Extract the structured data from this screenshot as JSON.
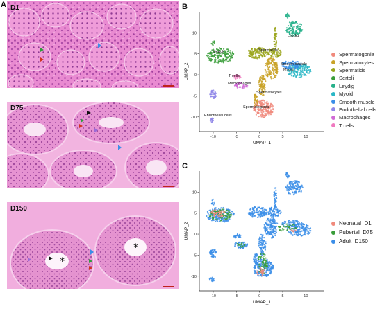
{
  "panels": {
    "a": {
      "letter": "A",
      "sections": [
        {
          "label": "D1"
        },
        {
          "label": "D75"
        },
        {
          "label": "D150"
        }
      ]
    },
    "b": {
      "letter": "B",
      "xlabel": "UMAP_1",
      "ylabel": "UMAP_2",
      "legend": [
        {
          "label": "Spermatogonia",
          "color": "#f08a7c"
        },
        {
          "label": "Spermatocytes",
          "color": "#c9a227"
        },
        {
          "label": "Spermatids",
          "color": "#9aa51b"
        },
        {
          "label": "Sertoli",
          "color": "#3a9d3a"
        },
        {
          "label": "Leydig",
          "color": "#26b08a"
        },
        {
          "label": "Myoid",
          "color": "#2ab7c6"
        },
        {
          "label": "Smooth muscle",
          "color": "#3b8ee8"
        },
        {
          "label": "Endothelial cells",
          "color": "#8f86e8"
        },
        {
          "label": "Macrophages",
          "color": "#d06ad6"
        },
        {
          "label": "T cells",
          "color": "#f07ac0"
        }
      ],
      "cluster_labels": {
        "leydig": "Leydig",
        "sertoli": "Sertoli",
        "spermatids": "Spermatids",
        "tcells": "T cells",
        "macrophages": "Macrophages",
        "smooth": "Smooth muscle",
        "myoid": "Myoid",
        "spermatocytes": "Spermatocytes",
        "spermatogonia": "Spermatogonia",
        "endothelial": "Endothelial cells"
      }
    },
    "c": {
      "letter": "C",
      "xlabel": "UMAP_1",
      "ylabel": "UMAP_2",
      "legend": [
        {
          "label": "Neonatal_D1",
          "color": "#f08a7c"
        },
        {
          "label": "Pubertal_D75",
          "color": "#3a9d3a"
        },
        {
          "label": "Adult_D150",
          "color": "#3b8ee8"
        }
      ]
    }
  },
  "chart_data": [
    {
      "type": "scatter",
      "panel": "B",
      "xlabel": "UMAP_1",
      "ylabel": "UMAP_2",
      "xlim": [
        -13,
        14
      ],
      "ylim": [
        -13.5,
        15
      ],
      "xticks": [
        -10,
        -5,
        0,
        5,
        10
      ],
      "yticks": [
        -10,
        -5,
        0,
        5,
        10
      ],
      "grid": false,
      "legend_position": "right",
      "series": [
        {
          "name": "Spermatogonia",
          "centroid": [
            0.5,
            -8
          ]
        },
        {
          "name": "Spermatocytes",
          "centroid": [
            1.5,
            -1
          ]
        },
        {
          "name": "Spermatids",
          "centroid": [
            1.5,
            5
          ]
        },
        {
          "name": "Sertoli",
          "centroid": [
            -8.5,
            4.5
          ]
        },
        {
          "name": "Leydig",
          "centroid": [
            7.5,
            11
          ]
        },
        {
          "name": "Myoid",
          "centroid": [
            8,
            1
          ]
        },
        {
          "name": "Smooth muscle",
          "centroid": [
            7.5,
            1.8
          ]
        },
        {
          "name": "Endothelial cells",
          "centroid": [
            -10,
            -5
          ]
        },
        {
          "name": "Macrophages",
          "centroid": [
            -4,
            -2.5
          ]
        },
        {
          "name": "T cells",
          "centroid": [
            -4.5,
            -0.5
          ]
        }
      ]
    },
    {
      "type": "scatter",
      "panel": "C",
      "xlabel": "UMAP_1",
      "ylabel": "UMAP_2",
      "xlim": [
        -13,
        14
      ],
      "ylim": [
        -13.5,
        15
      ],
      "xticks": [
        -10,
        -5,
        0,
        5,
        10
      ],
      "yticks": [
        -10,
        -5,
        0,
        5,
        10
      ],
      "grid": false,
      "legend_position": "right",
      "series": [
        {
          "name": "Neonatal_D1"
        },
        {
          "name": "Pubertal_D75"
        },
        {
          "name": "Adult_D150"
        }
      ]
    }
  ]
}
